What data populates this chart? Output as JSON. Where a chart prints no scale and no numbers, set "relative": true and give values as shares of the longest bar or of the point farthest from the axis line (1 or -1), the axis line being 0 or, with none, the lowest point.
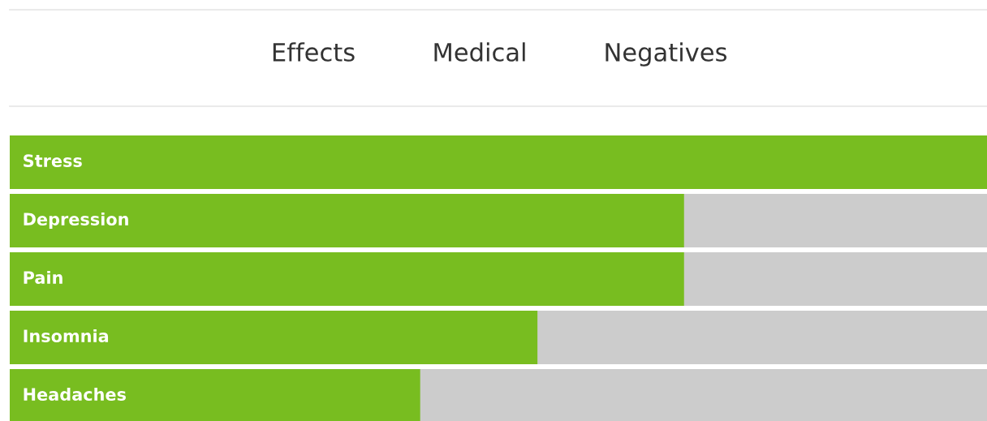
{
  "chart_data": {
    "type": "bar",
    "orientation": "horizontal",
    "relative": true,
    "categories": [
      "Stress",
      "Depression",
      "Pain",
      "Insomnia",
      "Headaches"
    ],
    "values": [
      1,
      0.69,
      0.69,
      0.54,
      0.42
    ],
    "color": "#78bd20",
    "annotations": [
      "Effects",
      "Medical",
      "Negatives"
    ]
  }
}
